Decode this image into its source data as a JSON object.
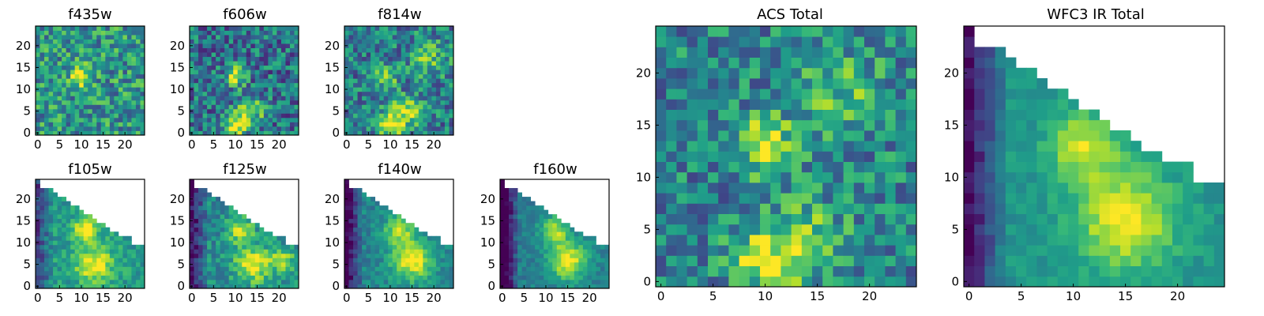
{
  "chart_data": [
    {
      "type": "heatmap",
      "title": "f435w",
      "grid_size": 25,
      "xlim": [
        0,
        25
      ],
      "ylim": [
        0,
        25
      ],
      "xticks": [
        "0",
        "5",
        "10",
        "15",
        "20"
      ],
      "yticks": [
        "0",
        "5",
        "10",
        "15",
        "20"
      ],
      "colormap": "viridis",
      "source_mask": "full",
      "sources": [
        {
          "x": 10,
          "y": 13,
          "amplitude": 0.55,
          "sigma": 1.6
        }
      ],
      "background": 0.52,
      "noise": 0.28
    },
    {
      "type": "heatmap",
      "title": "f606w",
      "grid_size": 25,
      "xlim": [
        0,
        25
      ],
      "ylim": [
        0,
        25
      ],
      "xticks": [
        "0",
        "5",
        "10",
        "15",
        "20"
      ],
      "yticks": [
        "0",
        "5",
        "10",
        "15",
        "20"
      ],
      "colormap": "viridis",
      "source_mask": "full",
      "sources": [
        {
          "x": 10,
          "y": 13,
          "amplitude": 0.65,
          "sigma": 1.5
        },
        {
          "x": 10,
          "y": 2,
          "amplitude": 0.55,
          "sigma": 2.0
        },
        {
          "x": 14,
          "y": 5,
          "amplitude": 0.35,
          "sigma": 2.5
        }
      ],
      "background": 0.38,
      "noise": 0.28
    },
    {
      "type": "heatmap",
      "title": "f814w",
      "grid_size": 25,
      "xlim": [
        0,
        25
      ],
      "ylim": [
        0,
        25
      ],
      "xticks": [
        "0",
        "5",
        "10",
        "15",
        "20"
      ],
      "yticks": [
        "0",
        "5",
        "10",
        "15",
        "20"
      ],
      "colormap": "viridis",
      "source_mask": "full",
      "sources": [
        {
          "x": 9,
          "y": 13,
          "amplitude": 0.55,
          "sigma": 1.6
        },
        {
          "x": 10,
          "y": 2,
          "amplitude": 0.5,
          "sigma": 2.2
        },
        {
          "x": 14,
          "y": 5,
          "amplitude": 0.4,
          "sigma": 2.5
        },
        {
          "x": 19,
          "y": 17,
          "amplitude": 0.3,
          "sigma": 3.0
        }
      ],
      "background": 0.42,
      "noise": 0.26
    },
    {
      "type": "heatmap",
      "title": "f105w",
      "grid_size": 25,
      "xlim": [
        0,
        25
      ],
      "ylim": [
        0,
        25
      ],
      "xticks": [
        "0",
        "5",
        "10",
        "15",
        "20"
      ],
      "yticks": [
        "0",
        "5",
        "10",
        "15",
        "20"
      ],
      "colormap": "viridis",
      "source_mask": "triangle",
      "sources": [
        {
          "x": 11,
          "y": 13,
          "amplitude": 0.45,
          "sigma": 2.0
        },
        {
          "x": 13,
          "y": 5,
          "amplitude": 0.45,
          "sigma": 3.0
        }
      ],
      "background": 0.55,
      "noise": 0.14,
      "edge_darkening": 0.35
    },
    {
      "type": "heatmap",
      "title": "f125w",
      "grid_size": 25,
      "xlim": [
        0,
        25
      ],
      "ylim": [
        0,
        25
      ],
      "xticks": [
        "0",
        "5",
        "10",
        "15",
        "20"
      ],
      "yticks": [
        "0",
        "5",
        "10",
        "15",
        "20"
      ],
      "colormap": "viridis",
      "source_mask": "triangle",
      "sources": [
        {
          "x": 11,
          "y": 13,
          "amplitude": 0.45,
          "sigma": 2.0
        },
        {
          "x": 14,
          "y": 5,
          "amplitude": 0.5,
          "sigma": 3.0
        },
        {
          "x": 21,
          "y": 6,
          "amplitude": 0.35,
          "sigma": 2.0
        }
      ],
      "background": 0.48,
      "noise": 0.16,
      "edge_darkening": 0.45
    },
    {
      "type": "heatmap",
      "title": "f140w",
      "grid_size": 25,
      "xlim": [
        0,
        25
      ],
      "ylim": [
        0,
        25
      ],
      "xticks": [
        "0",
        "5",
        "10",
        "15",
        "20"
      ],
      "yticks": [
        "0",
        "5",
        "10",
        "15",
        "20"
      ],
      "colormap": "viridis",
      "source_mask": "triangle",
      "sources": [
        {
          "x": 12,
          "y": 13,
          "amplitude": 0.45,
          "sigma": 2.2
        },
        {
          "x": 15,
          "y": 6,
          "amplitude": 0.55,
          "sigma": 3.2
        }
      ],
      "background": 0.45,
      "noise": 0.12,
      "edge_darkening": 0.5
    },
    {
      "type": "heatmap",
      "title": "f160w",
      "grid_size": 25,
      "xlim": [
        0,
        25
      ],
      "ylim": [
        0,
        25
      ],
      "xticks": [
        "0",
        "5",
        "10",
        "15",
        "20"
      ],
      "yticks": [
        "0",
        "5",
        "10",
        "15",
        "20"
      ],
      "colormap": "viridis",
      "source_mask": "triangle",
      "sources": [
        {
          "x": 12,
          "y": 13,
          "amplitude": 0.45,
          "sigma": 2.2
        },
        {
          "x": 15,
          "y": 6,
          "amplitude": 0.55,
          "sigma": 3.2
        }
      ],
      "background": 0.42,
      "noise": 0.1,
      "edge_darkening": 0.6
    },
    {
      "type": "heatmap",
      "title": "ACS Total",
      "grid_size": 25,
      "xlim": [
        0,
        25
      ],
      "ylim": [
        0,
        25
      ],
      "xticks": [
        "0",
        "5",
        "10",
        "15",
        "20"
      ],
      "yticks": [
        "0",
        "5",
        "10",
        "15",
        "20"
      ],
      "colormap": "viridis",
      "source_mask": "full",
      "sources": [
        {
          "x": 10,
          "y": 13,
          "amplitude": 0.6,
          "sigma": 1.7
        },
        {
          "x": 10,
          "y": 2,
          "amplitude": 0.45,
          "sigma": 2.2
        },
        {
          "x": 14,
          "y": 4,
          "amplitude": 0.3,
          "sigma": 2.5
        },
        {
          "x": 17,
          "y": 18,
          "amplitude": 0.25,
          "sigma": 3.0
        }
      ],
      "background": 0.45,
      "noise": 0.25
    },
    {
      "type": "heatmap",
      "title": "WFC3 IR Total",
      "grid_size": 25,
      "xlim": [
        0,
        25
      ],
      "ylim": [
        0,
        25
      ],
      "xticks": [
        "0",
        "5",
        "10",
        "15",
        "20"
      ],
      "yticks": [
        "0",
        "5",
        "10",
        "15",
        "20"
      ],
      "colormap": "viridis",
      "source_mask": "triangle",
      "sources": [
        {
          "x": 11,
          "y": 13,
          "amplitude": 0.4,
          "sigma": 2.3
        },
        {
          "x": 15,
          "y": 6,
          "amplitude": 0.5,
          "sigma": 3.2
        }
      ],
      "background": 0.52,
      "noise": 0.08,
      "edge_darkening": 0.5
    }
  ]
}
